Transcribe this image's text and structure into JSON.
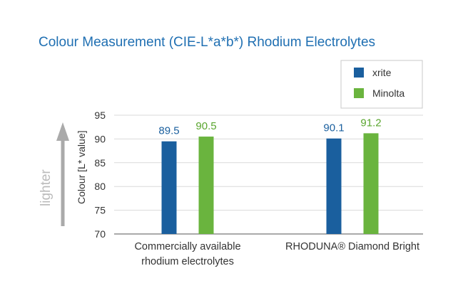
{
  "chart_data": {
    "type": "bar",
    "title": "Colour Measurement (CIE-L*a*b*) Rhodium Electrolytes",
    "ylabel": "Colour [L* value]",
    "direction_label": "lighter",
    "categories": [
      [
        "Commercially available",
        "rhodium electrolytes"
      ],
      [
        "RHODUNA® Diamond Bright"
      ]
    ],
    "series": [
      {
        "name": "xrite",
        "color": "#1a5f9e",
        "label_color": "#1a5f9e",
        "values": [
          89.5,
          90.1
        ]
      },
      {
        "name": "Minolta",
        "color": "#6ab43e",
        "label_color": "#5aa62f",
        "values": [
          90.5,
          91.2
        ]
      }
    ],
    "ylim": [
      70,
      95
    ],
    "yticks": [
      70,
      75,
      80,
      85,
      90,
      95
    ],
    "grid": true,
    "legend_position": "top-right"
  }
}
